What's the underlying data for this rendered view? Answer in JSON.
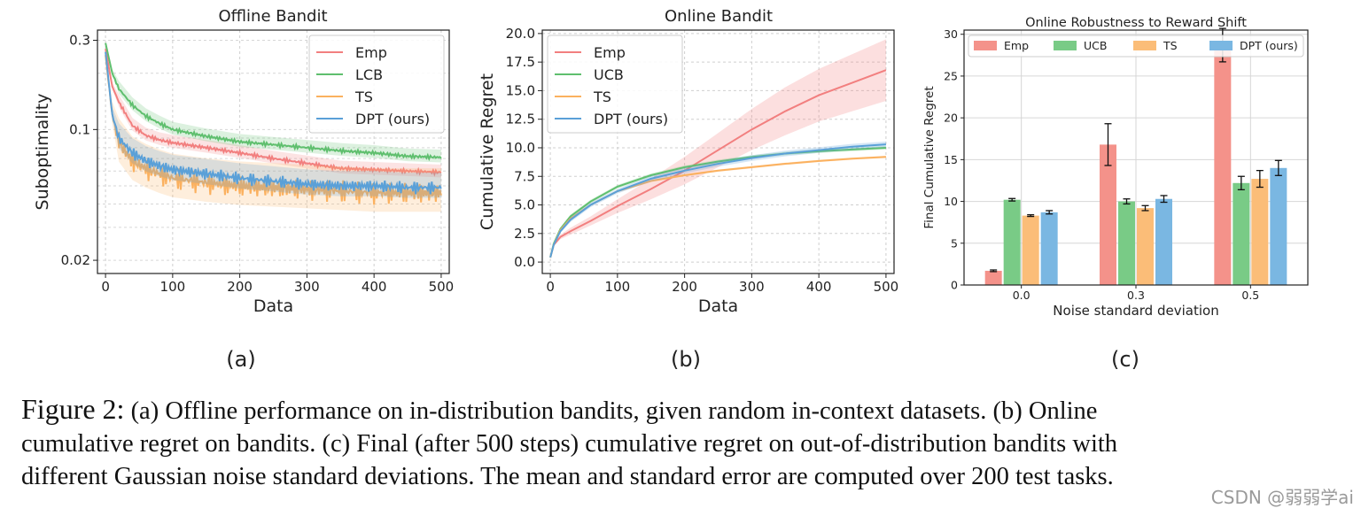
{
  "figure": {
    "caption_prefix": "Figure 2:",
    "caption_lines": [
      "(a) Offline performance on in-distribution bandits, given random in-context datasets. (b) Online",
      "cumulative regret on bandits. (c) Final (after 500 steps) cumulative regret on out-of-distribution bandits with",
      "different Gaussian noise standard deviations. The mean and standard error are computed over 200 test tasks."
    ],
    "watermark": "CSDN @弱弱学ai"
  },
  "chart_data": [
    {
      "id": "a",
      "type": "line",
      "panel_label": "(a)",
      "title": "Offline Bandit",
      "xlabel": "Data",
      "ylabel": "Suboptimality",
      "xscale": "linear",
      "yscale": "log",
      "xlim": [
        -12,
        512
      ],
      "ylim": [
        0.017,
        0.34
      ],
      "xticks": [
        0,
        100,
        200,
        300,
        400,
        500
      ],
      "yticks": [
        0.3,
        0.1,
        0.02
      ],
      "ytick_labels": [
        "0.3",
        "0.1",
        "0.02"
      ],
      "grid": true,
      "legend": "top-right",
      "series": [
        {
          "name": "Emp",
          "color": "#f27f7f",
          "x": [
            0,
            10,
            20,
            40,
            60,
            80,
            100,
            150,
            200,
            250,
            300,
            350,
            400,
            450,
            500
          ],
          "y": [
            0.27,
            0.17,
            0.14,
            0.105,
            0.093,
            0.088,
            0.085,
            0.08,
            0.075,
            0.07,
            0.066,
            0.062,
            0.061,
            0.06,
            0.059
          ]
        },
        {
          "name": "LCB",
          "color": "#5fbf6e",
          "x": [
            0,
            10,
            20,
            40,
            60,
            80,
            100,
            150,
            200,
            250,
            300,
            350,
            400,
            450,
            500
          ],
          "y": [
            0.29,
            0.2,
            0.165,
            0.135,
            0.118,
            0.108,
            0.1,
            0.092,
            0.086,
            0.083,
            0.08,
            0.077,
            0.075,
            0.072,
            0.071
          ]
        },
        {
          "name": "TS",
          "color": "#fbb15f",
          "x": [
            0,
            10,
            20,
            40,
            60,
            80,
            100,
            150,
            200,
            250,
            300,
            350,
            400,
            450,
            500
          ],
          "y": [
            0.25,
            0.12,
            0.085,
            0.068,
            0.062,
            0.058,
            0.055,
            0.052,
            0.05,
            0.049,
            0.048,
            0.047,
            0.046,
            0.046,
            0.046
          ]
        },
        {
          "name": "DPT (ours)",
          "color": "#5aa0d8",
          "x": [
            0,
            10,
            20,
            40,
            60,
            80,
            100,
            150,
            200,
            250,
            300,
            350,
            400,
            450,
            500
          ],
          "y": [
            0.26,
            0.12,
            0.09,
            0.075,
            0.068,
            0.064,
            0.061,
            0.058,
            0.055,
            0.053,
            0.051,
            0.05,
            0.05,
            0.049,
            0.049
          ]
        }
      ]
    },
    {
      "id": "b",
      "type": "line",
      "panel_label": "(b)",
      "title": "Online Bandit",
      "xlabel": "Data",
      "ylabel": "Cumulative Regret",
      "xlim": [
        -12,
        512
      ],
      "ylim": [
        -1,
        20.3
      ],
      "xticks": [
        0,
        100,
        200,
        300,
        400,
        500
      ],
      "yticks": [
        0.0,
        2.5,
        5.0,
        7.5,
        10.0,
        12.5,
        15.0,
        17.5,
        20.0
      ],
      "ytick_labels": [
        "0.0",
        "2.5",
        "5.0",
        "7.5",
        "10.0",
        "12.5",
        "15.0",
        "17.5",
        "20.0"
      ],
      "grid": true,
      "legend": "top-left",
      "series": [
        {
          "name": "Emp",
          "color": "#f27f7f",
          "x": [
            0,
            5,
            15,
            30,
            60,
            100,
            150,
            200,
            250,
            300,
            350,
            400,
            450,
            500
          ],
          "y": [
            0.4,
            1.5,
            2.2,
            2.7,
            3.6,
            4.9,
            6.4,
            8.0,
            9.8,
            11.6,
            13.2,
            14.6,
            15.7,
            16.8
          ],
          "band": [
            0,
            0.1,
            0.2,
            0.3,
            0.4,
            0.6,
            0.9,
            1.2,
            1.5,
            1.8,
            2.1,
            2.3,
            2.5,
            2.7
          ]
        },
        {
          "name": "UCB",
          "color": "#5fbf6e",
          "x": [
            0,
            5,
            15,
            30,
            60,
            100,
            150,
            200,
            250,
            300,
            350,
            400,
            450,
            500
          ],
          "y": [
            0.4,
            1.6,
            2.9,
            4.0,
            5.3,
            6.6,
            7.6,
            8.3,
            8.8,
            9.2,
            9.5,
            9.7,
            9.85,
            10.0
          ],
          "band": [
            0,
            0.1,
            0.1,
            0.15,
            0.15,
            0.15,
            0.15,
            0.15,
            0.15,
            0.15,
            0.15,
            0.15,
            0.15,
            0.15
          ]
        },
        {
          "name": "TS",
          "color": "#fbb15f",
          "x": [
            0,
            5,
            15,
            30,
            60,
            100,
            150,
            200,
            250,
            300,
            350,
            400,
            450,
            500
          ],
          "y": [
            0.4,
            1.5,
            2.8,
            3.8,
            5.0,
            6.2,
            7.1,
            7.6,
            8.0,
            8.3,
            8.6,
            8.85,
            9.05,
            9.2
          ],
          "band": [
            0,
            0.1,
            0.1,
            0.1,
            0.1,
            0.1,
            0.1,
            0.1,
            0.1,
            0.1,
            0.1,
            0.1,
            0.1,
            0.1
          ]
        },
        {
          "name": "DPT (ours)",
          "color": "#5aa0d8",
          "x": [
            0,
            5,
            15,
            30,
            60,
            100,
            150,
            200,
            250,
            300,
            350,
            400,
            450,
            500
          ],
          "y": [
            0.4,
            1.5,
            2.7,
            3.7,
            5.0,
            6.2,
            7.3,
            8.0,
            8.6,
            9.1,
            9.5,
            9.8,
            10.1,
            10.3
          ],
          "band": [
            0,
            0.1,
            0.15,
            0.2,
            0.2,
            0.2,
            0.25,
            0.25,
            0.25,
            0.25,
            0.25,
            0.25,
            0.25,
            0.25
          ]
        }
      ]
    },
    {
      "id": "c",
      "type": "bar",
      "panel_label": "(c)",
      "title": "Online Robustness to Reward Shift",
      "xlabel": "Noise standard deviation",
      "ylabel": "Final Cumulative Regret",
      "categories": [
        "0.0",
        "0.3",
        "0.5"
      ],
      "ylim": [
        0,
        30.5
      ],
      "yticks": [
        0,
        5,
        10,
        15,
        20,
        25,
        30
      ],
      "grid": true,
      "legend": "top",
      "series": [
        {
          "name": "Emp",
          "color": "#f4928a",
          "values": [
            1.7,
            16.8,
            28.7
          ],
          "errors": [
            0.1,
            2.5,
            2.0
          ]
        },
        {
          "name": "UCB",
          "color": "#79cb86",
          "values": [
            10.2,
            10.0,
            12.2
          ],
          "errors": [
            0.15,
            0.3,
            0.8
          ]
        },
        {
          "name": "TS",
          "color": "#fbbd78",
          "values": [
            8.3,
            9.2,
            12.7
          ],
          "errors": [
            0.1,
            0.3,
            1.0
          ]
        },
        {
          "name": "DPT (ours)",
          "color": "#7ab7e2",
          "values": [
            8.7,
            10.3,
            14.0
          ],
          "errors": [
            0.2,
            0.4,
            0.9
          ]
        }
      ]
    }
  ]
}
